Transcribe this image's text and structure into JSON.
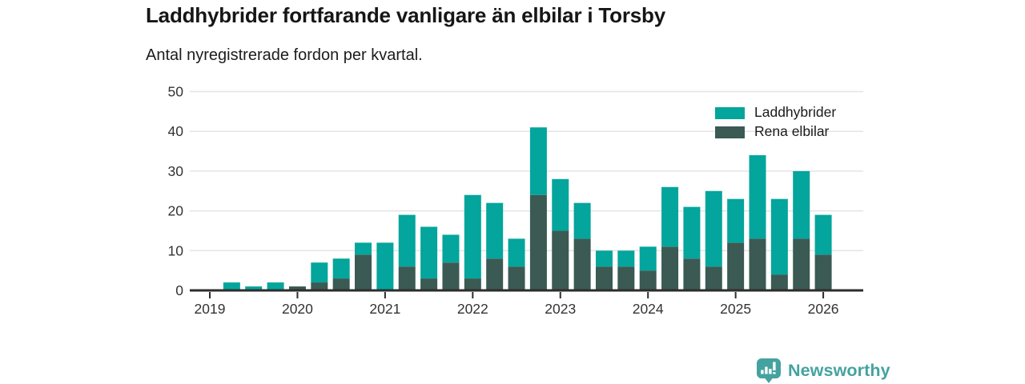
{
  "title": "Laddhybrider fortfarande vanligare än elbilar i Torsby",
  "subtitle": "Antal nyregistrerade fordon per kvartal.",
  "colors": {
    "laddhybrider": "#03A59C",
    "rena_elbilar": "#3A5A53",
    "grid": "#E4E4E4",
    "axis": "#2D2D2D",
    "tick_label": "#333333",
    "logo": "#44A3A0"
  },
  "legend": [
    {
      "label": "Laddhybrider",
      "color_key": "laddhybrider"
    },
    {
      "label": "Rena elbilar",
      "color_key": "rena_elbilar"
    }
  ],
  "footer": {
    "brand": "Newsworthy",
    "logo_icon": "bar-chart-speech-bubble-icon"
  },
  "chart_data": {
    "type": "bar",
    "stacked": true,
    "title": "Laddhybrider fortfarande vanligare än elbilar i Torsby",
    "subtitle": "Antal nyregistrerade fordon per kvartal.",
    "xlabel": "",
    "ylabel": "",
    "ylim": [
      0,
      50
    ],
    "yticks": [
      0,
      10,
      20,
      30,
      40,
      50
    ],
    "grid": true,
    "legend_position": "top-right",
    "xtick_years": [
      "2019",
      "2020",
      "2021",
      "2022",
      "2023",
      "2024",
      "2025",
      "2026"
    ],
    "quarters": [
      "2019 Q1",
      "2019 Q2",
      "2019 Q3",
      "2019 Q4",
      "2020 Q1",
      "2020 Q2",
      "2020 Q3",
      "2020 Q4",
      "2021 Q1",
      "2021 Q2",
      "2021 Q3",
      "2021 Q4",
      "2022 Q1",
      "2022 Q2",
      "2022 Q3",
      "2022 Q4",
      "2023 Q1",
      "2023 Q2",
      "2023 Q3",
      "2023 Q4",
      "2024 Q1",
      "2024 Q2",
      "2024 Q3",
      "2024 Q4",
      "2025 Q1",
      "2025 Q2",
      "2025 Q3",
      "2025 Q4",
      "2026 Q1"
    ],
    "series": [
      {
        "name": "Rena elbilar",
        "color_key": "rena_elbilar",
        "values": [
          0,
          0,
          0,
          0,
          1,
          2,
          3,
          9,
          0,
          6,
          3,
          7,
          3,
          8,
          6,
          24,
          15,
          13,
          6,
          6,
          5,
          11,
          8,
          6,
          12,
          13,
          4,
          13,
          9
        ]
      },
      {
        "name": "Laddhybrider",
        "color_key": "laddhybrider",
        "values": [
          0,
          2,
          1,
          2,
          0,
          5,
          5,
          3,
          12,
          13,
          13,
          7,
          21,
          14,
          7,
          17,
          13,
          9,
          4,
          4,
          6,
          15,
          13,
          19,
          11,
          21,
          19,
          17,
          10
        ]
      }
    ],
    "totals": [
      0,
      2,
      1,
      2,
      1,
      7,
      8,
      12,
      12,
      19,
      16,
      14,
      24,
      22,
      13,
      41,
      28,
      22,
      10,
      10,
      11,
      26,
      21,
      25,
      23,
      34,
      23,
      30,
      19
    ]
  }
}
